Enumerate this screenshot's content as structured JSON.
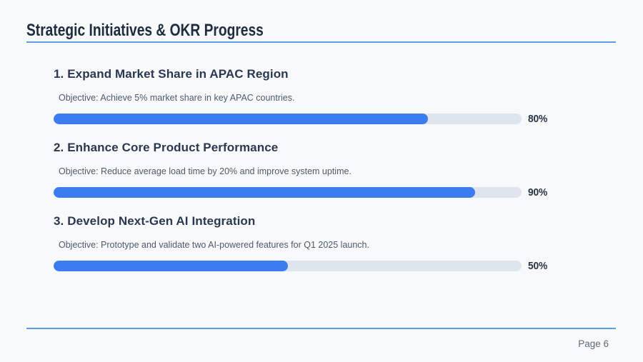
{
  "slide": {
    "title": "Strategic Initiatives & OKR Progress",
    "page_label": "Page 6"
  },
  "colors": {
    "background": "#f7f9fb",
    "title_text": "#1f2b3e",
    "heading_text": "#2b3850",
    "objective_text": "#4e5a6c",
    "progress_fill": "#3b7df0",
    "progress_track": "#dfe5ee",
    "rule_blue": "#5e9ce4",
    "page_number_text": "#5f6a78"
  },
  "initiatives": [
    {
      "heading": "1. Expand Market Share in APAC Region",
      "objective": "Objective: Achieve 5% market share in key APAC countries.",
      "progress_percent": 80,
      "progress_label": "80%"
    },
    {
      "heading": "2. Enhance Core Product Performance",
      "objective": "Objective: Reduce average load time by 20% and improve system uptime.",
      "progress_percent": 90,
      "progress_label": "90%"
    },
    {
      "heading": "3. Develop Next-Gen AI Integration",
      "objective": "Objective: Prototype and validate two AI-powered features for Q1 2025 launch.",
      "progress_percent": 50,
      "progress_label": "50%"
    }
  ]
}
